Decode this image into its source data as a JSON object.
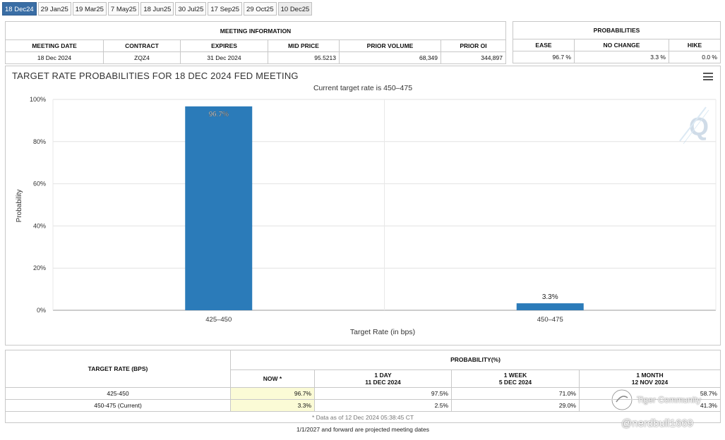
{
  "tabs": [
    "18 Dec24",
    "29 Jan25",
    "19 Mar25",
    "7 May25",
    "18 Jun25",
    "30 Jul25",
    "17 Sep25",
    "29 Oct25",
    "10 Dec25"
  ],
  "meeting_info": {
    "title": "MEETING INFORMATION",
    "headers": [
      "MEETING DATE",
      "CONTRACT",
      "EXPIRES",
      "MID PRICE",
      "PRIOR VOLUME",
      "PRIOR OI"
    ],
    "row": [
      "18 Dec 2024",
      "ZQZ4",
      "31 Dec 2024",
      "95.5213",
      "68,349",
      "344,897"
    ]
  },
  "probabilities": {
    "title": "PROBABILITIES",
    "headers": [
      "EASE",
      "NO CHANGE",
      "HIKE"
    ],
    "row": [
      "96.7 %",
      "3.3 %",
      "0.0 %"
    ]
  },
  "chart_title": "TARGET RATE PROBABILITIES FOR 18 DEC 2024 FED MEETING",
  "chart_subtitle": "Current target rate is 450–475",
  "chart_data": {
    "type": "bar",
    "categories": [
      "425–450",
      "450–475"
    ],
    "values": [
      96.7,
      3.3
    ],
    "value_labels": [
      "96.7%",
      "3.3%"
    ],
    "xlabel": "Target Rate (in bps)",
    "ylabel": "Probability",
    "ylim": [
      0,
      100
    ],
    "yticks": [
      "0%",
      "20%",
      "40%",
      "60%",
      "80%",
      "100%"
    ],
    "bar_color": "#2b7bb9",
    "grid": true
  },
  "prob_table": {
    "row_header": "TARGET RATE (BPS)",
    "group_header": "PROBABILITY(%)",
    "columns": [
      {
        "line1": "NOW *",
        "line2": ""
      },
      {
        "line1": "1 DAY",
        "line2": "11 DEC 2024"
      },
      {
        "line1": "1 WEEK",
        "line2": "5 DEC 2024"
      },
      {
        "line1": "1 MONTH",
        "line2": "12 NOV 2024"
      }
    ],
    "rows": [
      {
        "label": "425-450",
        "values": [
          "96.7%",
          "97.5%",
          "71.0%",
          "58.7%"
        ]
      },
      {
        "label": "450-475 (Current)",
        "values": [
          "3.3%",
          "2.5%",
          "29.0%",
          "41.3%"
        ]
      }
    ],
    "note": "* Data as of 12 Dec 2024 05:38:45 CT"
  },
  "footer": "1/1/2027 and forward are projected meeting dates",
  "watermark": {
    "community": "Tiger Community",
    "user": "@nerdbull1669"
  }
}
